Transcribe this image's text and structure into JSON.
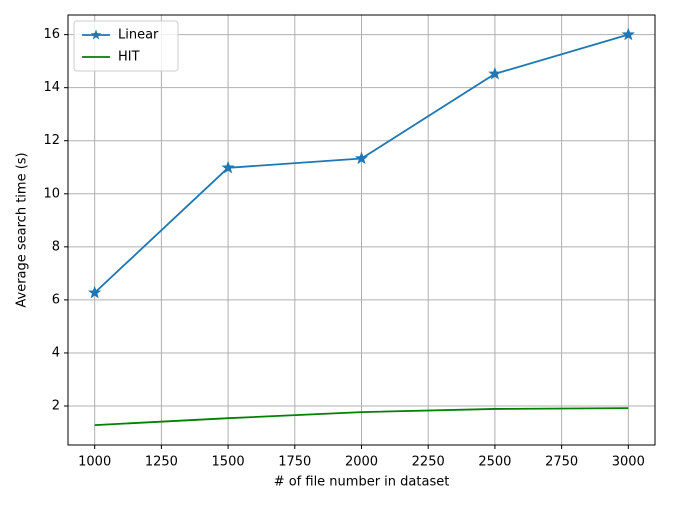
{
  "chart_data": {
    "type": "line",
    "x_label": "# of file number in dataset",
    "y_label": "Average search time (s)",
    "x": [
      1000,
      1500,
      2000,
      2500,
      3000
    ],
    "series": [
      {
        "name": "Linear",
        "color": "#1f77b4",
        "marker": "star",
        "values": [
          6.27,
          10.98,
          11.33,
          14.52,
          16.0
        ]
      },
      {
        "name": "HIT",
        "color": "#008000",
        "values": [
          1.28,
          1.54,
          1.77,
          1.89,
          1.92
        ]
      }
    ],
    "xlim": [
      900,
      3100
    ],
    "ylim": [
      0.53,
      16.74
    ],
    "xticks": [
      1000,
      1250,
      1500,
      1750,
      2000,
      2250,
      2500,
      2750,
      3000
    ],
    "yticks": [
      2,
      4,
      6,
      8,
      10,
      12,
      14,
      16
    ],
    "grid": true,
    "legend": "upper left"
  }
}
